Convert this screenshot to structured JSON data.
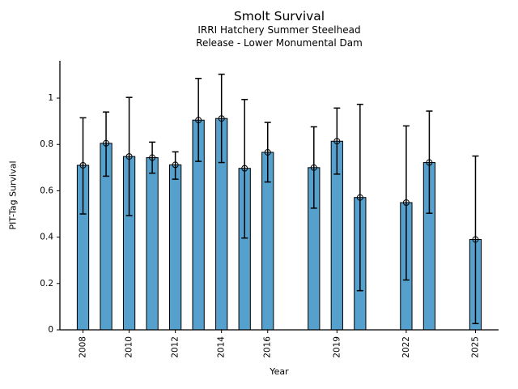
{
  "chart_data": {
    "type": "bar",
    "title": "Smolt Survival",
    "subtitle_lines": [
      "IRRI Hatchery Summer Steelhead",
      "Release - Lower Monumental Dam"
    ],
    "xlabel": "Year",
    "ylabel": "PIT-Tag Survival",
    "x": [
      2008,
      2009,
      2010,
      2011,
      2012,
      2013,
      2014,
      2015,
      2016,
      2018,
      2019,
      2020,
      2022,
      2023,
      2025
    ],
    "values": [
      0.71,
      0.805,
      0.748,
      0.743,
      0.712,
      0.905,
      0.912,
      0.697,
      0.766,
      0.7,
      0.814,
      0.571,
      0.549,
      0.722,
      0.39
    ],
    "error_low": [
      0.5,
      0.663,
      0.493,
      0.676,
      0.65,
      0.727,
      0.722,
      0.396,
      0.638,
      0.525,
      0.672,
      0.169,
      0.215,
      0.503,
      0.027
    ],
    "error_high": [
      0.915,
      0.94,
      1.003,
      0.81,
      0.768,
      1.085,
      1.103,
      0.994,
      0.895,
      0.876,
      0.957,
      0.973,
      0.88,
      0.944,
      0.75
    ],
    "xticks": [
      2008,
      2010,
      2012,
      2014,
      2016,
      2019,
      2022,
      2025
    ],
    "yticks": [
      0,
      0.2,
      0.4,
      0.6,
      0.8,
      1
    ],
    "xlim": [
      2007,
      2026
    ],
    "ylim": [
      0,
      1.161
    ],
    "bar_width_years": 0.5,
    "x_tick_rotation": 90,
    "grid": false,
    "legend": null,
    "marker": "open-circle",
    "colors": {
      "bar_fill": "#55A0CD",
      "bar_edge": "#000000",
      "error_bar": "#000000",
      "marker_edge": "#000000",
      "spine": "#000000",
      "text": "#000000"
    }
  }
}
